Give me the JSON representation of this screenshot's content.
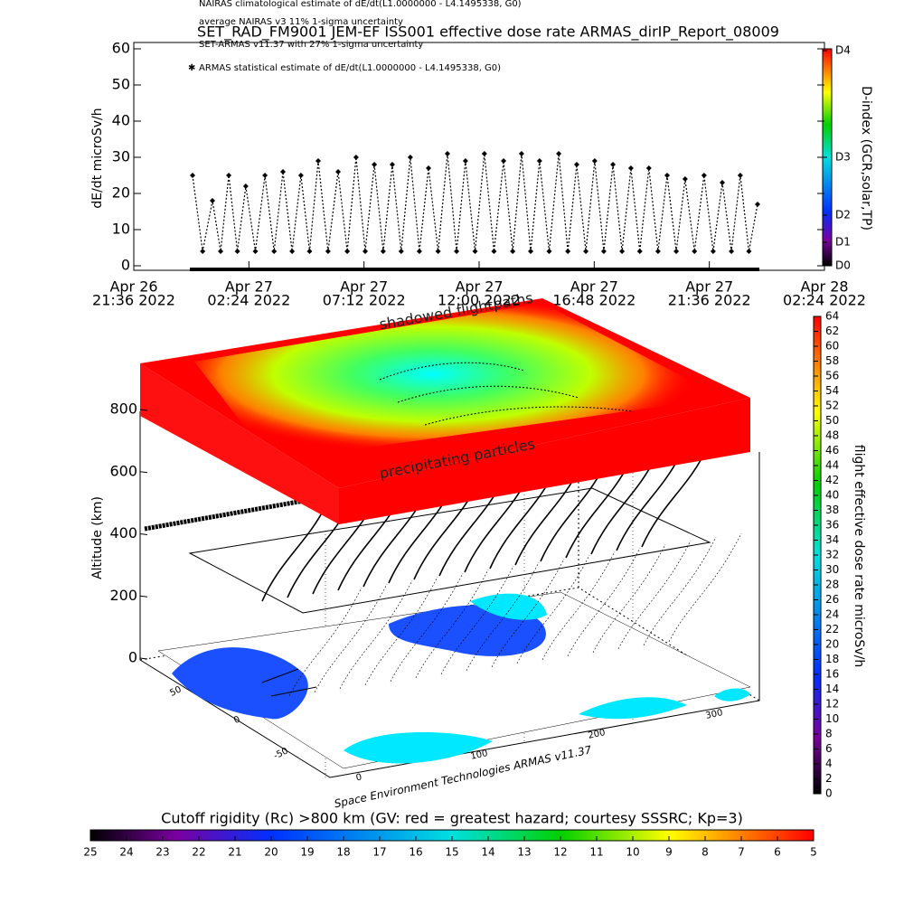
{
  "chart_data": [
    {
      "type": "scatter",
      "title": "SET_RAD_FM9001  JEM-EF ISS001 effective dose rate ARMAS_dirIP_Report_08009",
      "y_label": "dE/dt microSv/h",
      "legend_lines": [
        "NAIRAS climatological estimate of dE/dt(L1.0000000 - L4.1495338, G0)",
        "average NAIRAS v3 11% 1-sigma uncertainty",
        "SET-ARMAS v11.37 with 27% 1-sigma uncertainty",
        "ARMAS statistical estimate of dE/dt(L1.0000000 - L4.1495338, G0)"
      ],
      "xlim": [
        0,
        28.8
      ],
      "xticks": [
        {
          "value": 0,
          "label": [
            "Apr 26",
            "21:36 2022"
          ]
        },
        {
          "value": 4.8,
          "label": [
            "Apr 27",
            "02:24 2022"
          ]
        },
        {
          "value": 9.6,
          "label": [
            "Apr 27",
            "07:12 2022"
          ]
        },
        {
          "value": 14.4,
          "label": [
            "Apr 27",
            "12:00 2022"
          ]
        },
        {
          "value": 19.2,
          "label": [
            "Apr 27",
            "16:48 2022"
          ]
        },
        {
          "value": 24,
          "label": [
            "Apr 27",
            "21:36 2022"
          ]
        },
        {
          "value": 28.8,
          "label": [
            "Apr 28",
            "02:24 2022"
          ]
        }
      ],
      "ylim": [
        0,
        60
      ],
      "yticks": [
        0,
        10,
        20,
        30,
        40,
        50,
        60
      ],
      "series": [
        {
          "name": "ARMAS",
          "color": "#000000",
          "x": [
            2.45,
            2.87,
            3.28,
            3.62,
            3.96,
            4.32,
            4.67,
            5.07,
            5.47,
            5.85,
            6.22,
            6.6,
            6.97,
            7.33,
            7.69,
            8.1,
            8.52,
            8.9,
            9.27,
            9.65,
            10.03,
            10.4,
            10.78,
            11.15,
            11.53,
            11.91,
            12.29,
            12.69,
            13.08,
            13.46,
            13.83,
            14.23,
            14.62,
            15.02,
            15.42,
            15.8,
            16.17,
            16.55,
            16.92,
            17.32,
            17.72,
            18.1,
            18.47,
            18.85,
            19.22,
            19.6,
            19.98,
            20.36,
            20.73,
            21.1,
            21.48,
            21.86,
            22.24,
            22.62,
            22.99,
            23.38,
            23.78,
            24.16,
            24.54,
            24.92,
            25.29,
            25.65,
            26.01
          ],
          "values": [
            25,
            4,
            18,
            4,
            25,
            4,
            22,
            4,
            25,
            4,
            26,
            4,
            25,
            4,
            29,
            4,
            26,
            4,
            30,
            4,
            28,
            4,
            28,
            4,
            30,
            4,
            27,
            4,
            31,
            4,
            29,
            4,
            31,
            4,
            29,
            4,
            31,
            4,
            29,
            4,
            31,
            4,
            28,
            4,
            29,
            4,
            28,
            4,
            27,
            4,
            27,
            4,
            25,
            4,
            24,
            4,
            25,
            4,
            23,
            4,
            25,
            4,
            17
          ]
        }
      ],
      "colorbar": {
        "label": "D-index (GCR,solar,TP)",
        "ticks": [
          {
            "value": 0,
            "label": "D0"
          },
          {
            "value": 1,
            "label": "D1"
          },
          {
            "value": 2,
            "label": "D2"
          },
          {
            "value": 3,
            "label": "D3"
          },
          {
            "value": 4,
            "label": "D4"
          }
        ]
      }
    },
    {
      "type": "surface3d",
      "annotations": [
        "shadowed flightpaths",
        "precipitating particles",
        "Space Environment Technologies ARMAS v11.37"
      ],
      "z_label": "Altitude (km)",
      "zlim": [
        0,
        800
      ],
      "zticks": [
        0,
        200,
        400,
        600,
        800
      ],
      "lat_ticks": [
        50,
        0,
        -50
      ],
      "lon_ticks": [
        0,
        100,
        200,
        300
      ],
      "colorbar": {
        "label": "flight effective dose rate microSv/h",
        "lim": [
          0,
          64
        ],
        "ticks": [
          0,
          2,
          4,
          6,
          8,
          10,
          12,
          14,
          16,
          18,
          20,
          22,
          24,
          26,
          28,
          30,
          32,
          34,
          36,
          38,
          40,
          42,
          44,
          46,
          48,
          50,
          52,
          54,
          56,
          58,
          60,
          62,
          64
        ]
      }
    },
    {
      "type": "colorbar",
      "title": "Cutoff rigidity (Rc) >800 km (GV: red = greatest hazard; courtesy SSSRC; Kp=3)",
      "lim": [
        25,
        5
      ],
      "ticks": [
        25,
        24,
        23,
        22,
        21,
        20,
        19,
        18,
        17,
        16,
        15,
        14,
        13,
        12,
        11,
        10,
        9,
        8,
        7,
        6,
        5
      ]
    }
  ]
}
